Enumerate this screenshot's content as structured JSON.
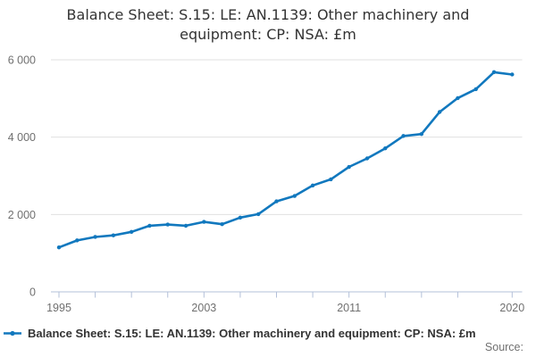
{
  "title": "Balance Sheet: S.15: LE: AN.1139: Other machinery and equipment: CP: NSA: £m",
  "legend": {
    "label": "Balance Sheet: S.15: LE: AN.1139: Other machinery and equipment: CP: NSA: £m"
  },
  "source": {
    "label": "Source:"
  },
  "colors": {
    "line": "#1178be",
    "grid": "#e0e0e0",
    "axis": "#b3c0d9",
    "tick_text": "#707070",
    "title_text": "#333333",
    "legend_text": "#333333"
  },
  "chart_data": {
    "type": "line",
    "title": "Balance Sheet: S.15: LE: AN.1139: Other machinery and equipment: CP: NSA: £m",
    "xlabel": "",
    "ylabel": "",
    "x": [
      1995,
      1996,
      1997,
      1998,
      1999,
      2000,
      2001,
      2002,
      2003,
      2004,
      2005,
      2006,
      2007,
      2008,
      2009,
      2010,
      2011,
      2012,
      2013,
      2014,
      2015,
      2016,
      2017,
      2018,
      2019,
      2020
    ],
    "series": [
      {
        "name": "Balance Sheet: S.15: LE: AN.1139: Other machinery and equipment: CP: NSA: £m",
        "values": [
          1150,
          1330,
          1420,
          1460,
          1550,
          1710,
          1740,
          1710,
          1810,
          1750,
          1920,
          2010,
          2340,
          2480,
          2750,
          2910,
          3230,
          3450,
          3710,
          4030,
          4080,
          4650,
          5010,
          5240,
          5680,
          5620
        ]
      }
    ],
    "xlim": [
      1995,
      2020
    ],
    "ylim": [
      0,
      6000
    ],
    "yticks": [
      0,
      2000,
      4000,
      6000
    ],
    "ytick_labels": [
      "0",
      "2 000",
      "4 000",
      "6 000"
    ],
    "xticks": [
      1995,
      1997,
      1999,
      2001,
      2003,
      2005,
      2007,
      2009,
      2011,
      2013,
      2015,
      2017,
      2020
    ],
    "xtick_labels": [
      {
        "x": 1995,
        "label": "1995"
      },
      {
        "x": 2003,
        "label": "2003"
      },
      {
        "x": 2011,
        "label": "2011"
      },
      {
        "x": 2020,
        "label": "2020"
      }
    ],
    "grid": "horizontal",
    "legend_position": "bottom-left",
    "marker": "circle"
  }
}
